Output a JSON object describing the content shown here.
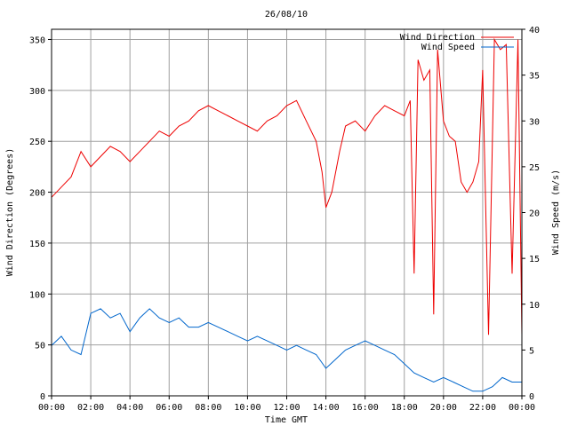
{
  "chart_data": {
    "type": "line",
    "title": "26/08/10",
    "xlabel": "Time GMT",
    "ylabel_left": "Wind Direction (Degrees)",
    "ylabel_right": "Wind Speed (m/s)",
    "x_ticks": [
      "00:00",
      "02:00",
      "04:00",
      "06:00",
      "08:00",
      "10:00",
      "12:00",
      "14:00",
      "16:00",
      "18:00",
      "20:00",
      "22:00",
      "00:00"
    ],
    "x_range_hours": [
      0,
      24
    ],
    "ylim_left": [
      0,
      360
    ],
    "yticks_left": [
      "0",
      "50",
      "100",
      "150",
      "200",
      "250",
      "300",
      "350"
    ],
    "ylim_right": [
      0,
      40
    ],
    "yticks_right": [
      "0",
      "5",
      "10",
      "15",
      "20",
      "25",
      "30",
      "35",
      "40"
    ],
    "grid": true,
    "legend_position": "top-right",
    "series": [
      {
        "name": "Wind Direction",
        "axis": "left",
        "color": "#ee0000",
        "x_hours": [
          0,
          0.5,
          1,
          1.5,
          2,
          2.5,
          3,
          3.5,
          4,
          4.5,
          5,
          5.5,
          6,
          6.5,
          7,
          7.5,
          8,
          8.5,
          9,
          9.5,
          10,
          10.5,
          11,
          11.5,
          12,
          12.5,
          13,
          13.5,
          13.8,
          14,
          14.3,
          14.7,
          15,
          15.5,
          16,
          16.5,
          17,
          17.5,
          18,
          18.3,
          18.5,
          18.7,
          19,
          19.3,
          19.5,
          19.7,
          20,
          20.3,
          20.6,
          20.9,
          21.2,
          21.5,
          21.8,
          22,
          22.3,
          22.6,
          22.9,
          23.2,
          23.5,
          23.8,
          24
        ],
        "values": [
          195,
          205,
          215,
          240,
          225,
          235,
          245,
          240,
          230,
          240,
          250,
          260,
          255,
          265,
          270,
          280,
          285,
          280,
          275,
          270,
          265,
          260,
          270,
          275,
          285,
          290,
          270,
          250,
          220,
          185,
          200,
          240,
          265,
          270,
          260,
          275,
          285,
          280,
          275,
          290,
          120,
          330,
          310,
          320,
          80,
          340,
          270,
          255,
          250,
          210,
          200,
          210,
          230,
          320,
          60,
          350,
          340,
          345,
          120,
          350,
          60
        ]
      },
      {
        "name": "Wind Speed",
        "axis": "right",
        "color": "#0066cc",
        "x_hours": [
          0,
          0.5,
          1,
          1.5,
          2,
          2.5,
          3,
          3.5,
          4,
          4.5,
          5,
          5.5,
          6,
          6.5,
          7,
          7.5,
          8,
          8.5,
          9,
          9.5,
          10,
          10.5,
          11,
          11.5,
          12,
          12.5,
          13,
          13.5,
          14,
          14.5,
          15,
          15.5,
          16,
          16.5,
          17,
          17.5,
          18,
          18.5,
          19,
          19.5,
          20,
          20.5,
          21,
          21.5,
          22,
          22.5,
          23,
          23.5,
          24
        ],
        "values": [
          5.5,
          6.5,
          5.0,
          4.5,
          9.0,
          9.5,
          8.5,
          9.0,
          7.0,
          8.5,
          9.5,
          8.5,
          8.0,
          8.5,
          7.5,
          7.5,
          8.0,
          7.5,
          7.0,
          6.5,
          6.0,
          6.5,
          6.0,
          5.5,
          5.0,
          5.5,
          5.0,
          4.5,
          3.0,
          4.0,
          5.0,
          5.5,
          6.0,
          5.5,
          5.0,
          4.5,
          3.5,
          2.5,
          2.0,
          1.5,
          2.0,
          1.5,
          1.0,
          0.5,
          0.5,
          1.0,
          2.0,
          1.5,
          1.5
        ]
      }
    ]
  }
}
